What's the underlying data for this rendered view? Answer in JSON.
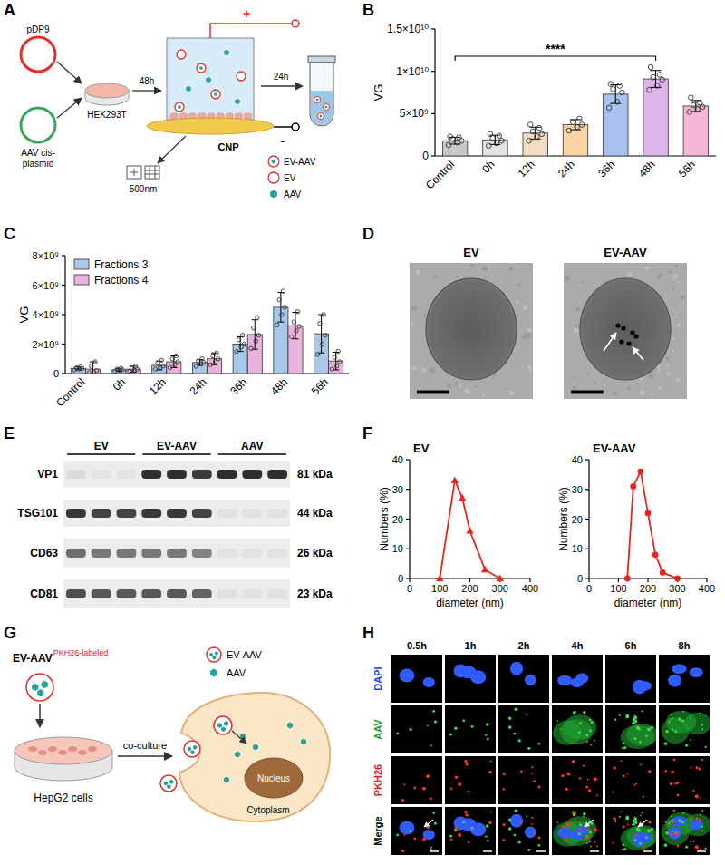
{
  "chart_data": [
    {
      "panel": "B",
      "type": "bar",
      "y_label": "VG",
      "categories": [
        "Control",
        "0h",
        "12h",
        "24h",
        "36h",
        "48h",
        "56h"
      ],
      "values": [
        1800000000.0,
        1900000000.0,
        2700000000.0,
        3700000000.0,
        7300000000.0,
        9100000000.0,
        5900000000.0
      ],
      "errors": [
        400000000.0,
        550000000.0,
        700000000.0,
        600000000.0,
        1100000000.0,
        1000000000.0,
        650000000.0
      ],
      "points": [
        [
          1300000000.0,
          1600000000.0,
          1800000000.0,
          2000000000.0,
          2200000000.0,
          2300000000.0
        ],
        [
          1200000000.0,
          1500000000.0,
          1800000000.0,
          2100000000.0,
          2400000000.0,
          2600000000.0
        ],
        [
          1800000000.0,
          2300000000.0,
          2600000000.0,
          2900000000.0,
          3300000000.0,
          3700000000.0
        ],
        [
          3000000000.0,
          3400000000.0,
          3700000000.0,
          4000000000.0,
          4400000000.0
        ],
        [
          5700000000.0,
          6400000000.0,
          7500000000.0,
          7900000000.0,
          8300000000.0,
          8500000000.0
        ],
        [
          7800000000.0,
          8300000000.0,
          9000000000.0,
          9300000000.0,
          9600000000.0,
          10500000000.0
        ],
        [
          5200000000.0,
          5500000000.0,
          5800000000.0,
          6000000000.0,
          6300000000.0,
          6900000000.0
        ]
      ],
      "colors": [
        "#c8c8c8",
        "#e3e3e3",
        "#f3dcc3",
        "#f7d3a6",
        "#a9c1ee",
        "#dcb5ea",
        "#f4b8d6"
      ],
      "ylim": [
        0,
        15000000000.0
      ],
      "yticks": [
        0,
        {
          "value": 5000000000.0,
          "label": "5×10⁹"
        },
        {
          "value": 10000000000.0,
          "label": "1×10¹⁰"
        },
        {
          "value": 15000000000.0,
          "label": "1.5×10¹⁰"
        }
      ],
      "significance": {
        "label": "****",
        "between": [
          "Control",
          "48h"
        ]
      }
    },
    {
      "panel": "C",
      "type": "bar",
      "y_label": "VG",
      "categories": [
        "Control",
        "0h",
        "12h",
        "24h",
        "36h",
        "48h",
        "56h"
      ],
      "series": [
        {
          "name": "Fractions 3",
          "color": "#a8c8ea",
          "values": [
            350000000.0,
            250000000.0,
            550000000.0,
            750000000.0,
            2000000000.0,
            4500000000.0,
            2700000000.0
          ],
          "errors": [
            100000000.0,
            100000000.0,
            300000000.0,
            200000000.0,
            500000000.0,
            1000000000.0,
            1300000000.0
          ],
          "points": [
            [
              250000000.0,
              300000000.0,
              350000000.0,
              400000000.0,
              450000000.0
            ],
            [
              150000000.0,
              200000000.0,
              250000000.0,
              300000000.0,
              350000000.0
            ],
            [
              300000000.0,
              400000000.0,
              500000000.0,
              700000000.0,
              900000000.0
            ],
            [
              500000000.0,
              650000000.0,
              750000000.0,
              850000000.0,
              1000000000.0
            ],
            [
              1500000000.0,
              1800000000.0,
              2000000000.0,
              2300000000.0,
              2600000000.0
            ],
            [
              3300000000.0,
              4000000000.0,
              4500000000.0,
              5000000000.0,
              5600000000.0
            ],
            [
              1300000000.0,
              2000000000.0,
              2600000000.0,
              3400000000.0,
              4000000000.0
            ]
          ]
        },
        {
          "name": "Fractions 4",
          "color": "#eab3dc",
          "values": [
            300000000.0,
            300000000.0,
            800000000.0,
            1000000000.0,
            2650000000.0,
            3250000000.0,
            850000000.0
          ],
          "errors": [
            500000000.0,
            200000000.0,
            400000000.0,
            400000000.0,
            1000000000.0,
            900000000.0,
            600000000.0
          ],
          "points": [
            [
              50000000.0,
              100000000.0,
              200000000.0,
              500000000.0,
              800000000.0
            ],
            [
              150000000.0,
              200000000.0,
              300000000.0,
              350000000.0,
              500000000.0
            ],
            [
              400000000.0,
              600000000.0,
              800000000.0,
              1000000000.0,
              1200000000.0
            ],
            [
              600000000.0,
              800000000.0,
              1000000000.0,
              1200000000.0,
              1400000000.0
            ],
            [
              1700000000.0,
              2200000000.0,
              2600000000.0,
              3100000000.0,
              3800000000.0
            ],
            [
              2500000000.0,
              2900000000.0,
              3200000000.0,
              3500000000.0,
              4200000000.0
            ],
            [
              300000000.0,
              500000000.0,
              800000000.0,
              1100000000.0,
              1500000000.0
            ]
          ]
        }
      ],
      "ylim": [
        0,
        8000000000.0
      ],
      "yticks": [
        0,
        {
          "value": 2000000000.0,
          "label": "2×10⁹"
        },
        {
          "value": 4000000000.0,
          "label": "4×10⁹"
        },
        {
          "value": 6000000000.0,
          "label": "6×10⁹"
        },
        {
          "value": 8000000000.0,
          "label": "8×10⁹"
        }
      ],
      "legend": "top-left"
    },
    {
      "panel": "F",
      "type": "line",
      "title": "EV",
      "x_label": "diameter (nm)",
      "y_label": "Numbers (%)",
      "x": [
        100,
        150,
        175,
        200,
        250,
        300
      ],
      "values": [
        0,
        33,
        27,
        16,
        3,
        0
      ],
      "color": "#e8251f",
      "marker": "triangle",
      "xlim": [
        0,
        400
      ],
      "xticks": [
        0,
        100,
        200,
        300,
        400
      ],
      "ylim": [
        0,
        40
      ],
      "yticks": [
        0,
        10,
        20,
        30,
        40
      ]
    },
    {
      "type": "line",
      "title": "EV-AAV",
      "x_label": "diameter (nm)",
      "y_label": "Numbers (%)",
      "x": [
        130,
        150,
        175,
        200,
        225,
        250,
        300
      ],
      "values": [
        0,
        31,
        36,
        22,
        8,
        2,
        0
      ],
      "color": "#e8251f",
      "marker": "circle",
      "xlim": [
        0,
        400
      ],
      "xticks": [
        0,
        100,
        200,
        300,
        400
      ],
      "ylim": [
        0,
        40
      ],
      "yticks": [
        0,
        10,
        20,
        30,
        40
      ]
    }
  ],
  "diagrams": {
    "A": {
      "panel": "A",
      "plasmids": [
        "pDP9",
        "AAV cis-plasmid"
      ],
      "cells": "HEK293T",
      "time1": "48h",
      "membrane": "CNP",
      "pore": "500nm",
      "time2": "24h",
      "polarity": [
        "+",
        "-"
      ],
      "legend": [
        "EV-AAV",
        "EV",
        "AAV"
      ]
    },
    "D": {
      "panel": "D",
      "images": [
        "EV",
        "EV-AAV"
      ]
    },
    "E": {
      "panel": "E",
      "groups": [
        "EV",
        "EV-AAV",
        "AAV"
      ],
      "rows": [
        {
          "label": "VP1",
          "size": "81 kDa",
          "intensity": [
            0.08,
            0.04,
            0.04,
            0.9,
            0.9,
            0.85,
            0.9,
            0.9,
            0.9
          ]
        },
        {
          "label": "TSG101",
          "size": "44 kDa",
          "intensity": [
            0.85,
            0.8,
            0.8,
            0.85,
            0.85,
            0.8,
            0.05,
            0.05,
            0.05
          ]
        },
        {
          "label": "CD63",
          "size": "26 kDa",
          "intensity": [
            0.6,
            0.55,
            0.55,
            0.55,
            0.55,
            0.5,
            0.05,
            0.05,
            0.05
          ]
        },
        {
          "label": "CD81",
          "size": "23 kDa",
          "intensity": [
            0.75,
            0.7,
            0.7,
            0.7,
            0.7,
            0.65,
            0.05,
            0.05,
            0.05
          ]
        }
      ]
    },
    "G": {
      "panel": "G",
      "particle": "EV-AAV",
      "label": "PKH26-labeled",
      "cells": "HepG2 cells",
      "step": "co-culture",
      "legend": [
        "EV-AAV",
        "AAV"
      ],
      "parts": [
        "Nucleus",
        "Cytoplasm"
      ]
    },
    "H": {
      "panel": "H",
      "times": [
        "0.5h",
        "1h",
        "2h",
        "4h",
        "6h",
        "8h"
      ],
      "channels": [
        "DAPI",
        "AAV",
        "PKH26",
        "Merge"
      ]
    }
  }
}
